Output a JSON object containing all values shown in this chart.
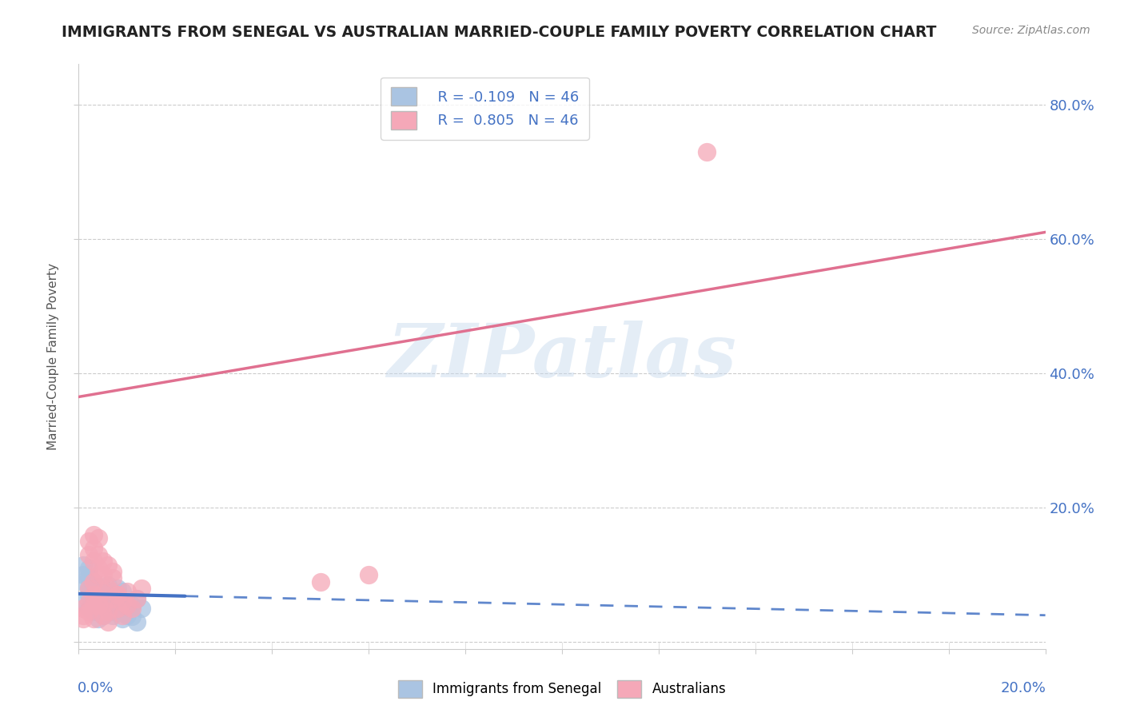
{
  "title": "IMMIGRANTS FROM SENEGAL VS AUSTRALIAN MARRIED-COUPLE FAMILY POVERTY CORRELATION CHART",
  "source": "Source: ZipAtlas.com",
  "ylabel": "Married-Couple Family Poverty",
  "ytick_vals": [
    0.0,
    0.2,
    0.4,
    0.6,
    0.8
  ],
  "ytick_labels": [
    "",
    "20.0%",
    "40.0%",
    "60.0%",
    "80.0%"
  ],
  "xlim": [
    0.0,
    0.2
  ],
  "ylim": [
    -0.01,
    0.86
  ],
  "R_blue": -0.109,
  "R_pink": 0.805,
  "N": 46,
  "legend_label_blue": "Immigrants from Senegal",
  "legend_label_pink": "Australians",
  "blue_color": "#aac4e2",
  "pink_color": "#f5a8b8",
  "blue_line_color": "#4472c4",
  "pink_line_color": "#e07090",
  "watermark": "ZIPatlas",
  "blue_scatter_x": [
    0.001,
    0.001,
    0.002,
    0.002,
    0.002,
    0.003,
    0.003,
    0.003,
    0.004,
    0.004,
    0.004,
    0.005,
    0.005,
    0.005,
    0.006,
    0.006,
    0.006,
    0.007,
    0.007,
    0.008,
    0.008,
    0.009,
    0.009,
    0.01,
    0.01,
    0.011,
    0.012,
    0.013,
    0.001,
    0.001,
    0.002,
    0.002,
    0.003,
    0.003,
    0.004,
    0.004,
    0.005,
    0.005,
    0.006,
    0.007,
    0.007,
    0.008,
    0.009,
    0.01,
    0.011,
    0.012
  ],
  "blue_scatter_y": [
    0.06,
    0.09,
    0.08,
    0.11,
    0.05,
    0.07,
    0.055,
    0.09,
    0.06,
    0.075,
    0.045,
    0.065,
    0.08,
    0.04,
    0.06,
    0.085,
    0.05,
    0.07,
    0.045,
    0.055,
    0.08,
    0.05,
    0.075,
    0.06,
    0.04,
    0.055,
    0.065,
    0.05,
    0.1,
    0.115,
    0.095,
    0.07,
    0.085,
    0.045,
    0.055,
    0.035,
    0.06,
    0.045,
    0.07,
    0.04,
    0.058,
    0.048,
    0.035,
    0.042,
    0.038,
    0.03
  ],
  "pink_scatter_x": [
    0.001,
    0.001,
    0.002,
    0.002,
    0.003,
    0.003,
    0.003,
    0.004,
    0.004,
    0.005,
    0.005,
    0.006,
    0.006,
    0.007,
    0.007,
    0.008,
    0.008,
    0.009,
    0.009,
    0.01,
    0.01,
    0.011,
    0.012,
    0.013,
    0.002,
    0.003,
    0.004,
    0.005,
    0.002,
    0.003,
    0.004,
    0.005,
    0.006,
    0.007,
    0.05,
    0.06,
    0.001,
    0.002,
    0.003,
    0.004,
    0.005,
    0.006,
    0.003,
    0.004,
    0.13,
    0.008
  ],
  "pink_scatter_y": [
    0.05,
    0.035,
    0.06,
    0.08,
    0.07,
    0.055,
    0.09,
    0.065,
    0.1,
    0.075,
    0.055,
    0.08,
    0.045,
    0.065,
    0.095,
    0.07,
    0.05,
    0.06,
    0.04,
    0.055,
    0.075,
    0.05,
    0.065,
    0.08,
    0.13,
    0.12,
    0.11,
    0.1,
    0.15,
    0.14,
    0.13,
    0.12,
    0.115,
    0.105,
    0.09,
    0.1,
    0.04,
    0.045,
    0.035,
    0.055,
    0.04,
    0.03,
    0.16,
    0.155,
    0.73,
    0.07
  ],
  "blue_line_x0": 0.0,
  "blue_line_x_solid_end": 0.022,
  "blue_line_x1": 0.2,
  "blue_line_y0": 0.072,
  "blue_line_y1": 0.04,
  "pink_line_x0": 0.0,
  "pink_line_x1": 0.2,
  "pink_line_y0": 0.365,
  "pink_line_y1": 0.61,
  "grid_color": "#cccccc",
  "background_color": "#ffffff"
}
